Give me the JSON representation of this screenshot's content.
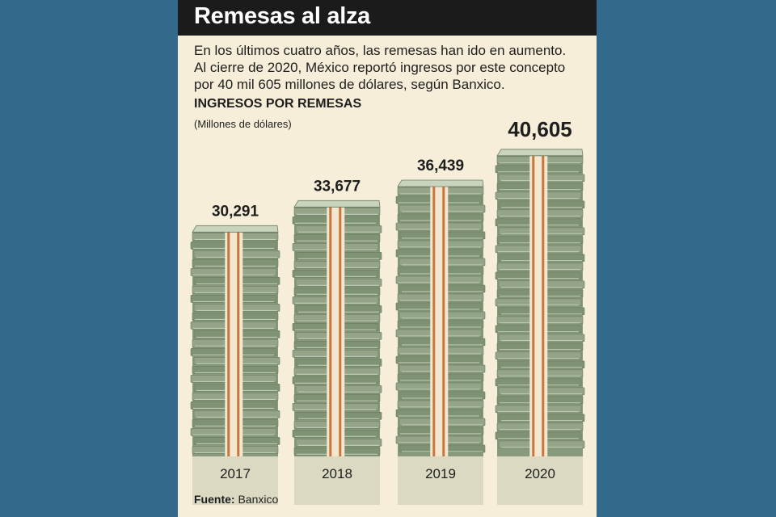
{
  "header": {
    "title": "Remesas al alza"
  },
  "intro": {
    "line1": "En los últimos cuatro años, las remesas han ido en aumento.",
    "line2": "Al cierre de 2020, México reportó ingresos por este concepto",
    "line3": "por 40 mil 605 millones de dólares, según Banxico."
  },
  "source": {
    "label": "Fuente:",
    "value": "Banxico"
  },
  "colors": {
    "background": "#336a8c",
    "panel": "#f7eed9",
    "title_bar": "#1b1b1b",
    "bill_green": "#889a7c",
    "bill_light": "#c9d3bd",
    "band_orange": "#c9763e",
    "band_light": "#f3e7d0"
  },
  "chart_data": {
    "type": "bar",
    "title": "INGRESOS POR REMESAS",
    "subtitle": "(Millones de dólares)",
    "categories": [
      "2017",
      "2018",
      "2019",
      "2020"
    ],
    "series": [
      {
        "values": [
          30291,
          33677,
          36439,
          40605
        ]
      }
    ],
    "value_labels": [
      "30,291",
      "33,677",
      "36,439",
      "40,605"
    ],
    "ylim": [
      0,
      42000
    ],
    "grid": false,
    "legend": "none"
  }
}
